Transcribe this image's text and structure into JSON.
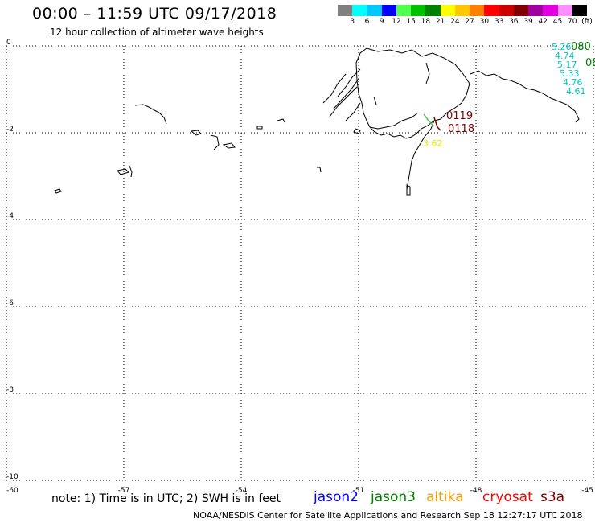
{
  "title": "00:00 – 11:59 UTC 09/17/2018",
  "subtitle": "12 hour collection of altimeter wave heights",
  "color_scale": {
    "labels": [
      "3",
      "6",
      "9",
      "12",
      "15",
      "18",
      "21",
      "24",
      "27",
      "30",
      "33",
      "36",
      "39",
      "42",
      "45",
      "70",
      "(ft)"
    ],
    "colors": [
      "#808080",
      "#00ffff",
      "#00c8ff",
      "#0000ff",
      "#50ff50",
      "#00c000",
      "#008000",
      "#ffff00",
      "#ffc800",
      "#ff8000",
      "#ff0000",
      "#c80000",
      "#800000",
      "#a000a0",
      "#e000e0",
      "#ff90ff",
      "#000000"
    ]
  },
  "axes": {
    "x_ticks": [
      "-60",
      "-57",
      "-54",
      "-51",
      "-48",
      "-45"
    ],
    "y_ticks": [
      "0",
      "-2",
      "-4",
      "-6",
      "-8",
      "-10"
    ]
  },
  "annotations": [
    {
      "text": "5.26",
      "color": "#00c8c8"
    },
    {
      "text": "080",
      "color": "#008000"
    },
    {
      "text": "4.74",
      "color": "#00c8c8"
    },
    {
      "text": "5.17",
      "color": "#00c8c8"
    },
    {
      "text": "08",
      "color": "#008000"
    },
    {
      "text": "5.33",
      "color": "#00c8c8"
    },
    {
      "text": "4.76",
      "color": "#00c8c8"
    },
    {
      "text": "4.61",
      "color": "#00c8c8"
    },
    {
      "text": "0119",
      "color": "#800000"
    },
    {
      "text": "0118",
      "color": "#800000"
    },
    {
      "text": "3.62",
      "color": "#e6e600"
    }
  ],
  "note": "note: 1) Time is in UTC; 2) SWH is in feet",
  "satellites": [
    {
      "name": "jason2",
      "color": "#0000ff"
    },
    {
      "name": "jason3",
      "color": "#008000"
    },
    {
      "name": "altika",
      "color": "#ff9900"
    },
    {
      "name": "cryosat",
      "color": "#ff0000"
    },
    {
      "name": "s3a",
      "color": "#800000"
    }
  ],
  "footer": "NOAA/NESDIS Center for Satellite Applications and Research    Sep 18 12:27:17 UTC 2018"
}
